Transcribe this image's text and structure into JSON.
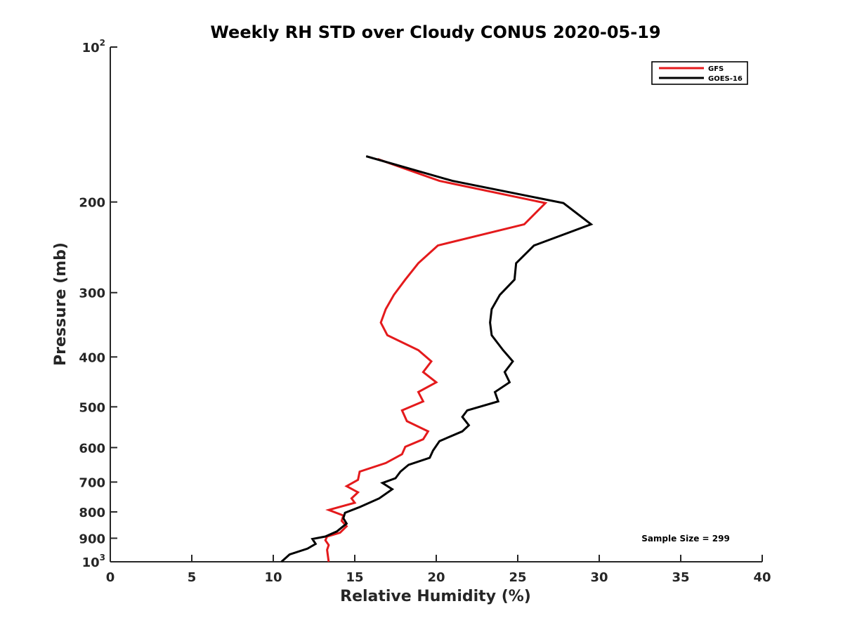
{
  "chart_data": {
    "type": "line",
    "title": "Weekly RH STD over Cloudy CONUS 2020-05-19",
    "xlabel": "Relative Humidity (%)",
    "ylabel": "Pressure (mb)",
    "xlim": [
      0,
      40
    ],
    "ylim": [
      100,
      1000
    ],
    "yscale": "log",
    "yreversed": true,
    "grid": false,
    "x_ticks": [
      0,
      5,
      10,
      15,
      20,
      25,
      30,
      35,
      40
    ],
    "y_ticks": [
      100,
      200,
      300,
      400,
      500,
      600,
      700,
      800,
      900,
      1000
    ],
    "y_tick_labels": [
      {
        "value": 100,
        "base": "10",
        "sup": "2"
      },
      {
        "value": 200,
        "base": "200",
        "sup": ""
      },
      {
        "value": 300,
        "base": "300",
        "sup": ""
      },
      {
        "value": 400,
        "base": "400",
        "sup": ""
      },
      {
        "value": 500,
        "base": "500",
        "sup": ""
      },
      {
        "value": 600,
        "base": "600",
        "sup": ""
      },
      {
        "value": 700,
        "base": "700",
        "sup": ""
      },
      {
        "value": 800,
        "base": "800",
        "sup": ""
      },
      {
        "value": 900,
        "base": "900",
        "sup": ""
      },
      {
        "value": 1000,
        "base": "10",
        "sup": "3"
      }
    ],
    "legend_position": "top-right",
    "annotation": "Sample Size = 299",
    "series": [
      {
        "name": "GFS",
        "color": "#e41a1c",
        "points": [
          [
            16.4,
            165
          ],
          [
            20.2,
            182
          ],
          [
            26.7,
            201
          ],
          [
            25.4,
            221
          ],
          [
            20.1,
            243
          ],
          [
            18.9,
            263
          ],
          [
            18.1,
            283
          ],
          [
            17.4,
            303
          ],
          [
            16.9,
            323
          ],
          [
            16.6,
            343
          ],
          [
            17.0,
            363
          ],
          [
            18.9,
            388
          ],
          [
            19.7,
            408
          ],
          [
            19.2,
            428
          ],
          [
            20.0,
            448
          ],
          [
            18.9,
            468
          ],
          [
            19.2,
            488
          ],
          [
            17.9,
            508
          ],
          [
            18.2,
            533
          ],
          [
            19.5,
            558
          ],
          [
            19.2,
            578
          ],
          [
            18.1,
            598
          ],
          [
            17.9,
            618
          ],
          [
            16.9,
            643
          ],
          [
            15.3,
            668
          ],
          [
            15.2,
            693
          ],
          [
            14.5,
            713
          ],
          [
            15.2,
            733
          ],
          [
            14.8,
            753
          ],
          [
            15.0,
            768
          ],
          [
            13.4,
            793
          ],
          [
            14.3,
            813
          ],
          [
            14.2,
            833
          ],
          [
            14.5,
            853
          ],
          [
            14.1,
            878
          ],
          [
            13.3,
            893
          ],
          [
            13.2,
            908
          ],
          [
            13.4,
            928
          ],
          [
            13.3,
            948
          ],
          [
            13.4,
            1000
          ]
        ]
      },
      {
        "name": "GOES-16",
        "color": "#000000",
        "points": [
          [
            15.7,
            163
          ],
          [
            21.0,
            182
          ],
          [
            27.8,
            201
          ],
          [
            29.5,
            221
          ],
          [
            26.0,
            243
          ],
          [
            24.9,
            263
          ],
          [
            24.8,
            283
          ],
          [
            23.9,
            303
          ],
          [
            23.4,
            323
          ],
          [
            23.3,
            343
          ],
          [
            23.4,
            363
          ],
          [
            24.1,
            388
          ],
          [
            24.7,
            408
          ],
          [
            24.2,
            428
          ],
          [
            24.5,
            448
          ],
          [
            23.6,
            468
          ],
          [
            23.8,
            488
          ],
          [
            21.9,
            508
          ],
          [
            21.6,
            523
          ],
          [
            22.0,
            543
          ],
          [
            21.6,
            558
          ],
          [
            20.2,
            583
          ],
          [
            19.8,
            608
          ],
          [
            19.6,
            628
          ],
          [
            18.3,
            648
          ],
          [
            17.8,
            668
          ],
          [
            17.5,
            688
          ],
          [
            16.7,
            703
          ],
          [
            17.3,
            723
          ],
          [
            16.5,
            753
          ],
          [
            15.3,
            783
          ],
          [
            14.4,
            803
          ],
          [
            14.3,
            823
          ],
          [
            14.5,
            843
          ],
          [
            13.9,
            873
          ],
          [
            13.2,
            893
          ],
          [
            12.4,
            903
          ],
          [
            12.6,
            923
          ],
          [
            12.1,
            943
          ],
          [
            11.0,
            968
          ],
          [
            10.5,
            1000
          ]
        ]
      }
    ]
  }
}
